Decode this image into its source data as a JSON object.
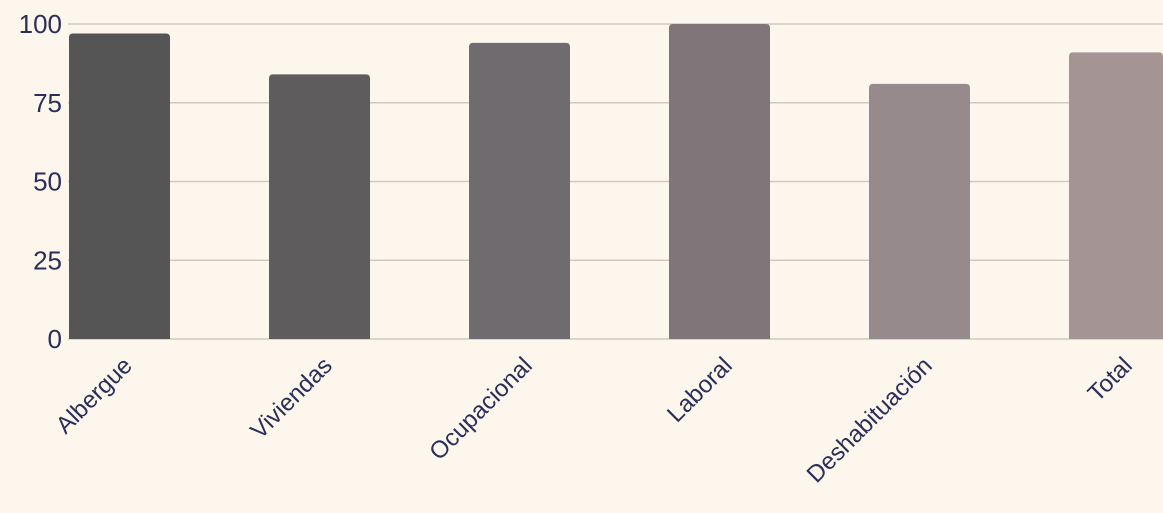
{
  "chart_data": {
    "type": "bar",
    "categories": [
      "Albergue",
      "Viviendas",
      "Ocupacional",
      "Laboral",
      "Deshabituación",
      "Total"
    ],
    "values": [
      97,
      84,
      94,
      100,
      81,
      91
    ],
    "bar_colors": [
      "#555555",
      "#5f5c5e",
      "#706b6e",
      "#807679",
      "#978a8c",
      "#a59494"
    ],
    "ylim": [
      0,
      100
    ],
    "yticks": [
      0,
      25,
      50,
      75,
      100
    ],
    "grid": true,
    "background": "#fdf6ec",
    "text_color": "#2a2f5a",
    "grid_color": "#cfcac0"
  }
}
